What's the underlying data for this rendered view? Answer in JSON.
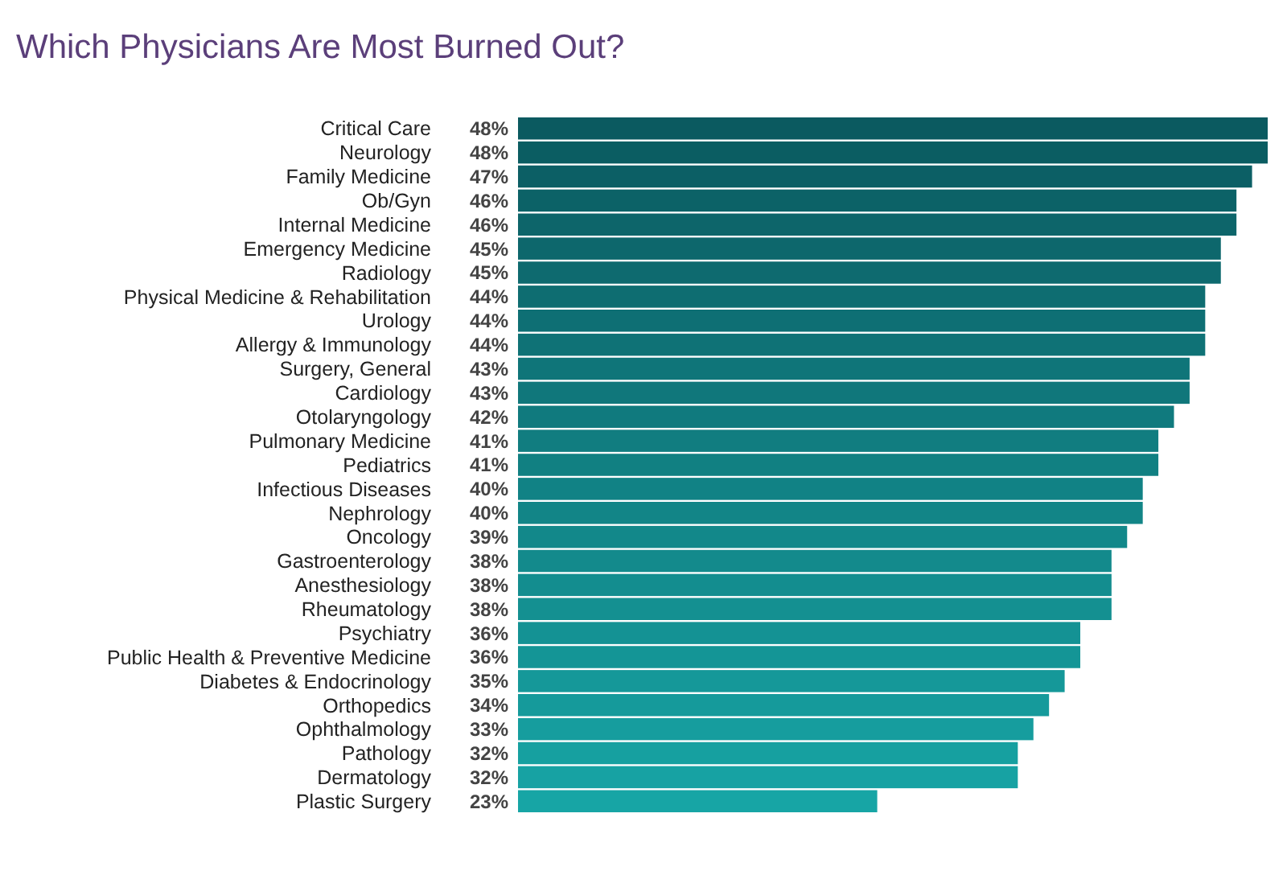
{
  "chart_data": {
    "type": "bar",
    "orientation": "horizontal",
    "title": "Which Physicians Are Most Burned Out?",
    "data_labels": true,
    "categories": [
      "Critical Care",
      "Neurology",
      "Family Medicine",
      "Ob/Gyn",
      "Internal Medicine",
      "Emergency Medicine",
      "Radiology",
      "Physical Medicine & Rehabilitation",
      "Urology",
      "Allergy & Immunology",
      "Surgery, General",
      "Cardiology",
      "Otolaryngology",
      "Pulmonary Medicine",
      "Pediatrics",
      "Infectious Diseases",
      "Nephrology",
      "Oncology",
      "Gastroenterology",
      "Anesthesiology",
      "Rheumatology",
      "Psychiatry",
      "Public Health & Preventive Medicine",
      "Diabetes & Endocrinology",
      "Orthopedics",
      "Ophthalmology",
      "Pathology",
      "Dermatology",
      "Plastic Surgery"
    ],
    "values": [
      48,
      48,
      47,
      46,
      46,
      45,
      45,
      44,
      44,
      44,
      43,
      43,
      42,
      41,
      41,
      40,
      40,
      39,
      38,
      38,
      38,
      36,
      36,
      35,
      34,
      33,
      32,
      32,
      23
    ],
    "value_labels": [
      "48%",
      "48%",
      "47%",
      "46%",
      "46%",
      "45%",
      "45%",
      "44%",
      "44%",
      "44%",
      "43%",
      "43%",
      "42%",
      "41%",
      "41%",
      "40%",
      "40%",
      "39%",
      "38%",
      "38%",
      "38%",
      "36%",
      "36%",
      "35%",
      "34%",
      "33%",
      "32%",
      "32%",
      "23%"
    ],
    "colors": [
      "#0b5a60",
      "#0b5d62",
      "#0c5f65",
      "#0c6267",
      "#0d656a",
      "#0d676c",
      "#0e6a6f",
      "#0e6d71",
      "#0e6f74",
      "#0f7276",
      "#0f7579",
      "#10777b",
      "#107a7e",
      "#117d80",
      "#118082",
      "#118285",
      "#128587",
      "#12888a",
      "#138a8c",
      "#138d8f",
      "#149091",
      "#149294",
      "#149596",
      "#159899",
      "#159a9b",
      "#169d9e",
      "#16a0a0",
      "#17a2a3",
      "#17a5a5"
    ]
  }
}
